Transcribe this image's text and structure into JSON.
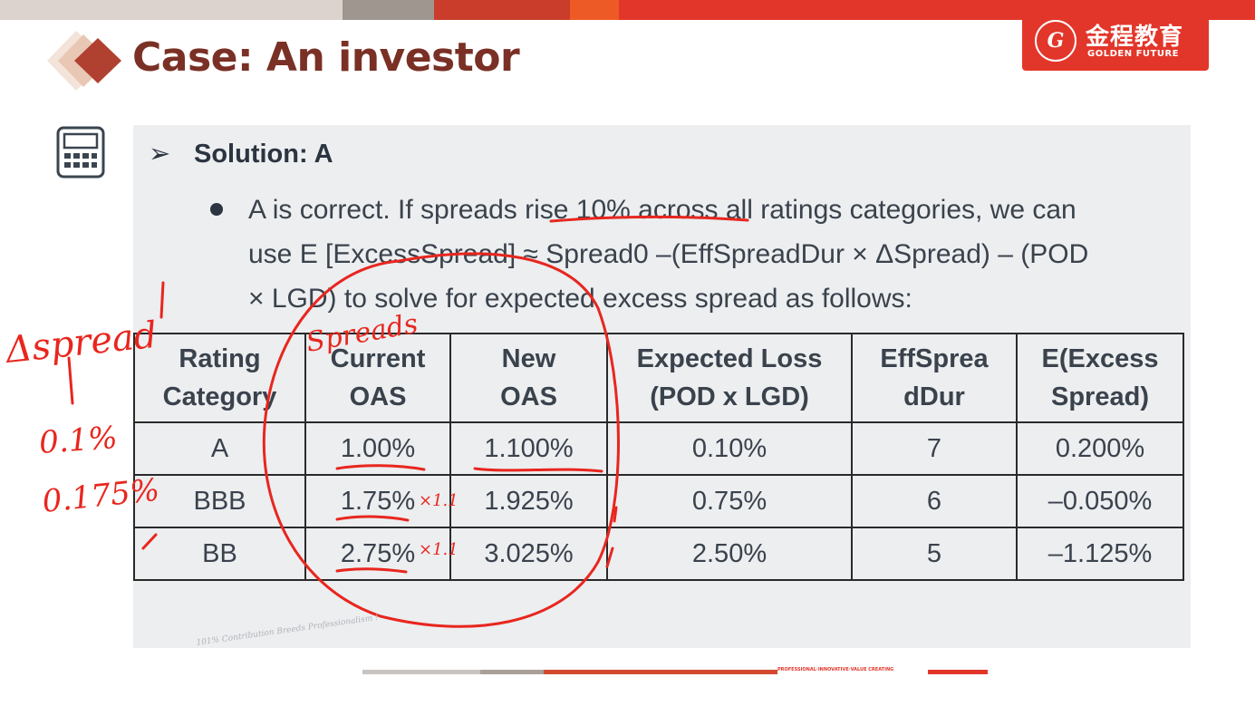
{
  "brand": {
    "cn": "金程教育",
    "en": "GOLDEN FUTURE",
    "seal_letter": "G",
    "color": "#e3362a",
    "footer_slogan": "101% Contribution Breeds Professionalism !",
    "footer_tag": "PROFESSIONAL·INNOVATIVE·VALUE CREATING"
  },
  "topbar_colors": [
    "#dcd3cf",
    "#9f9690",
    "#c93d2a",
    "#ee5a26",
    "#e3362a"
  ],
  "title": "Case: An investor",
  "icons": {
    "title": "diamond-icon",
    "calc": "calculator-icon",
    "bullet": "arrow-icon"
  },
  "solution": {
    "arrow": "➢",
    "label": "Solution: A"
  },
  "bullet": {
    "line1": "A is correct. If spreads rise 10% across all ratings categories, we can",
    "line2": "use E [ExcessSpread] ≈ Spread0 –(EffSpreadDur × ΔSpread) – (POD",
    "line3": "× LGD) to solve for expected excess spread as follows:"
  },
  "table": {
    "headers": [
      [
        "Rating",
        "Category"
      ],
      [
        "Current",
        "OAS"
      ],
      [
        "New",
        "OAS"
      ],
      [
        "Expected Loss",
        "(POD x LGD)"
      ],
      [
        "EffSprea",
        "dDur"
      ],
      [
        "E(Excess",
        "Spread)"
      ]
    ],
    "rows": [
      [
        "A",
        "1.00%",
        "1.100%",
        "0.10%",
        "7",
        "0.200%"
      ],
      [
        "BBB",
        "1.75%",
        "1.925%",
        "0.75%",
        "6",
        "–0.050%"
      ],
      [
        "BB",
        "2.75%",
        "3.025%",
        "2.50%",
        "5",
        "–1.125%"
      ]
    ]
  },
  "handwriting": {
    "color": "#e8261e",
    "delta_spread": "Δspread",
    "val1": "0.1%",
    "val2": "0.175%",
    "spreads": "Spreads",
    "times": "×1.1"
  }
}
